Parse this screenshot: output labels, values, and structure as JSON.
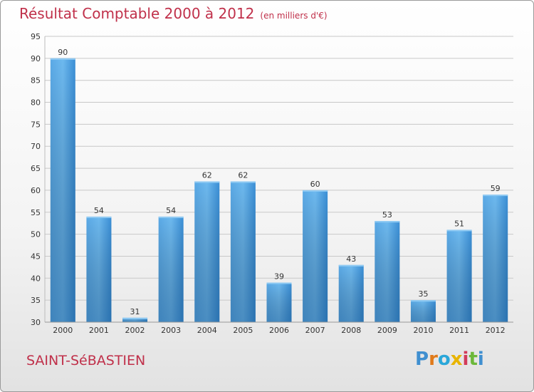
{
  "title": "Résultat Comptable 2000 à 2012",
  "unit": "(en milliers d'€)",
  "city": "SAINT-SéBASTIEN",
  "logo": {
    "letters": [
      "P",
      "r",
      "o",
      "x",
      "i",
      "t",
      "i"
    ],
    "colors": [
      "#3f8fd0",
      "#e07a1a",
      "#2aa7d9",
      "#e8b400",
      "#d23b5a",
      "#6cb83a",
      "#3f8fd0"
    ]
  },
  "colors": {
    "bar": "#3b8fd6",
    "bar_light": "#62b2ec",
    "title": "#c0304a"
  },
  "chart_data": {
    "type": "bar",
    "categories": [
      "2000",
      "2001",
      "2002",
      "2003",
      "2004",
      "2005",
      "2006",
      "2007",
      "2008",
      "2009",
      "2010",
      "2011",
      "2012"
    ],
    "values": [
      90,
      54,
      31,
      54,
      62,
      62,
      39,
      60,
      43,
      53,
      35,
      51,
      59
    ],
    "ylim": [
      30,
      95
    ],
    "yticks": [
      30,
      35,
      40,
      45,
      50,
      55,
      60,
      65,
      70,
      75,
      80,
      85,
      90,
      95
    ],
    "grid": true
  }
}
